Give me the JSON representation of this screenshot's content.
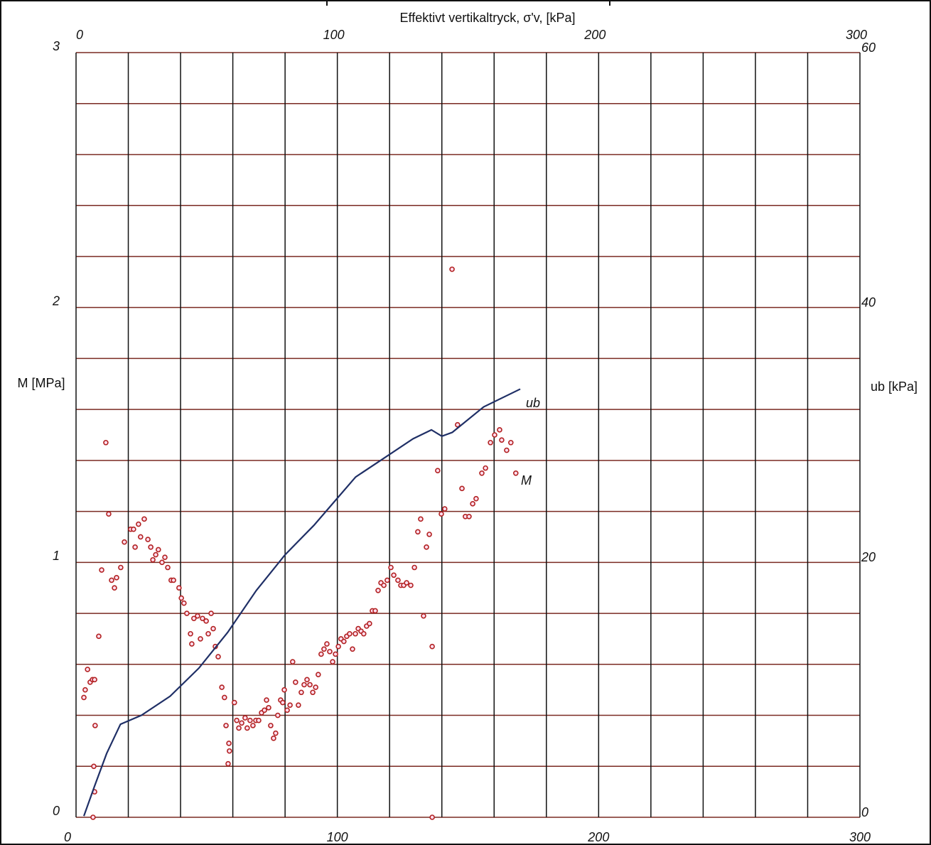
{
  "chart_data": {
    "type": "scatter",
    "title": "Effektivt vertikaltryck, σ'v, [kPa]",
    "ylabel": "M [MPa]",
    "y2label": "ub [kPa]",
    "xlim": [
      0,
      300
    ],
    "xticks": [
      0,
      100,
      200,
      300
    ],
    "xminor": [
      0,
      20,
      40,
      60,
      80,
      100,
      120,
      140,
      160,
      180,
      200,
      220,
      240,
      260,
      280,
      300
    ],
    "ylim": [
      0,
      3
    ],
    "yticks": [
      0,
      1,
      2,
      3
    ],
    "yminor": [
      0,
      0.2,
      0.4,
      0.6,
      0.8,
      1,
      1.2,
      1.4,
      1.6,
      1.8,
      2,
      2.2,
      2.4,
      2.6,
      2.8,
      3
    ],
    "y2lim": [
      0,
      60
    ],
    "y2ticks": [
      0,
      20,
      40,
      60
    ],
    "grid": true,
    "xgrid_color": "#111111",
    "ygrid_color": "#7a2a22",
    "annotations": [
      "ub",
      "M"
    ],
    "series": [
      {
        "name": "M",
        "type": "scatter",
        "color": "#b22222",
        "x": [
          3.0,
          3.5,
          4.4,
          5.4,
          6.3,
          7.1,
          7.3,
          6.8,
          6.5,
          7.1,
          8.7,
          9.8,
          11.4,
          12.5,
          13.6,
          14.7,
          15.5,
          17.1,
          18.5,
          20.9,
          22.0,
          22.6,
          23.9,
          24.7,
          26.1,
          27.5,
          28.6,
          29.4,
          30.5,
          31.5,
          32.9,
          34.0,
          35.1,
          36.4,
          37.3,
          39.4,
          40.3,
          41.3,
          42.4,
          43.8,
          44.3,
          45.1,
          46.5,
          47.6,
          48.4,
          49.8,
          50.6,
          51.7,
          52.5,
          53.3,
          54.4,
          55.8,
          56.8,
          57.4,
          58.5,
          58.7,
          58.2,
          60.6,
          61.5,
          62.3,
          63.4,
          64.7,
          65.5,
          66.6,
          67.7,
          68.8,
          69.9,
          71.0,
          72.1,
          72.9,
          73.7,
          74.5,
          75.6,
          76.4,
          77.2,
          78.3,
          79.1,
          79.7,
          80.8,
          81.9,
          82.9,
          84.0,
          85.1,
          86.2,
          87.3,
          88.4,
          89.5,
          90.6,
          91.7,
          92.7,
          93.8,
          94.9,
          96.0,
          97.1,
          98.2,
          99.3,
          100.4,
          101.4,
          102.5,
          103.6,
          104.7,
          105.8,
          106.9,
          108.0,
          109.1,
          110.1,
          111.2,
          112.3,
          113.4,
          114.5,
          115.6,
          116.7,
          117.8,
          119.1,
          120.5,
          121.6,
          123.2,
          124.3,
          125.4,
          126.5,
          128.1,
          129.5,
          130.8,
          131.9,
          133.0,
          134.1,
          135.2,
          136.3,
          136.3,
          138.4,
          139.8,
          141.1,
          143.9,
          146.0,
          147.7,
          149.0,
          150.4,
          151.8,
          153.1,
          155.3,
          156.7,
          158.6,
          160.2,
          162.1,
          162.9,
          164.8,
          166.4,
          168.3
        ],
        "values": [
          0.47,
          0.5,
          0.58,
          0.53,
          0.54,
          0.54,
          0.36,
          0.2,
          0.0,
          0.1,
          0.71,
          0.97,
          1.47,
          1.19,
          0.93,
          0.9,
          0.94,
          0.98,
          1.08,
          1.13,
          1.13,
          1.06,
          1.15,
          1.1,
          1.17,
          1.09,
          1.06,
          1.01,
          1.03,
          1.05,
          1.0,
          1.02,
          0.98,
          0.93,
          0.93,
          0.9,
          0.86,
          0.84,
          0.8,
          0.72,
          0.68,
          0.78,
          0.79,
          0.7,
          0.78,
          0.77,
          0.72,
          0.8,
          0.74,
          0.67,
          0.63,
          0.51,
          0.47,
          0.36,
          0.29,
          0.26,
          0.21,
          0.45,
          0.38,
          0.35,
          0.37,
          0.39,
          0.35,
          0.38,
          0.36,
          0.38,
          0.38,
          0.41,
          0.42,
          0.46,
          0.43,
          0.36,
          0.31,
          0.33,
          0.4,
          0.46,
          0.45,
          0.5,
          0.42,
          0.44,
          0.61,
          0.53,
          0.44,
          0.49,
          0.52,
          0.54,
          0.52,
          0.49,
          0.51,
          0.56,
          0.64,
          0.66,
          0.68,
          0.65,
          0.61,
          0.64,
          0.67,
          0.7,
          0.69,
          0.71,
          0.72,
          0.66,
          0.72,
          0.74,
          0.73,
          0.72,
          0.75,
          0.76,
          0.81,
          0.81,
          0.89,
          0.92,
          0.91,
          0.93,
          0.98,
          0.95,
          0.93,
          0.91,
          0.91,
          0.92,
          0.91,
          0.98,
          1.12,
          1.17,
          0.79,
          1.06,
          1.11,
          0.67,
          0.0,
          1.36,
          1.19,
          1.21,
          2.15,
          1.54,
          1.29,
          1.18,
          1.18,
          1.23,
          1.25,
          1.35,
          1.37,
          1.47,
          1.5,
          1.52,
          1.48,
          1.44,
          1.47,
          1.35
        ]
      },
      {
        "name": "ub",
        "type": "line",
        "axis": "y2",
        "color": "#1f2f66",
        "x": [
          3,
          7,
          11.7,
          17,
          25,
          36,
          47,
          58,
          69,
          80,
          91,
          99,
          107,
          118,
          129,
          136,
          140,
          144,
          156,
          170
        ],
        "values": [
          0.1,
          2.4,
          5,
          7.3,
          8,
          9.5,
          11.7,
          14.5,
          17.8,
          20.6,
          22.9,
          24.8,
          26.7,
          28.2,
          29.7,
          30.4,
          29.9,
          30.2,
          32.2,
          33.6
        ]
      }
    ]
  }
}
